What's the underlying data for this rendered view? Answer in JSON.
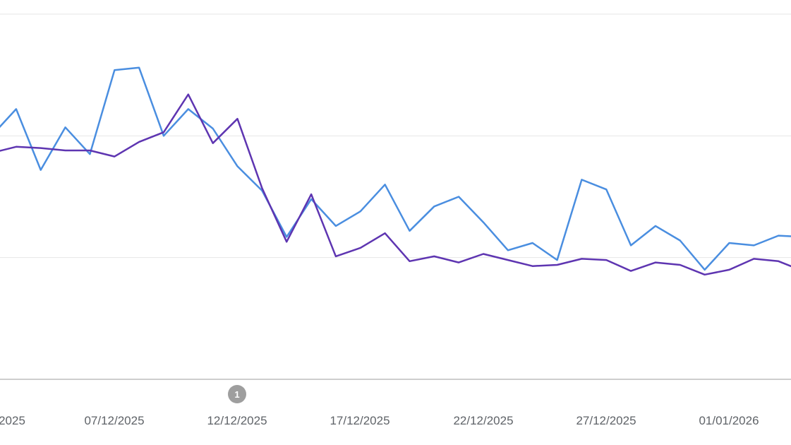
{
  "chart_data": {
    "type": "line",
    "title": "",
    "xlabel": "",
    "ylabel": "",
    "grid": true,
    "ylim": [
      0,
      3
    ],
    "x_start": "05/12/2025",
    "x_ticks": [
      "2025",
      "07/12/2025",
      "12/12/2025",
      "17/12/2025",
      "22/12/2025",
      "27/12/2025",
      "01/01/2026"
    ],
    "annotations": [
      {
        "label": "1",
        "date": "12/12/2025"
      }
    ],
    "series": [
      {
        "color": "#4a8ee0",
        "values": [
          2.0,
          2.22,
          1.72,
          2.07,
          1.85,
          2.54,
          2.56,
          2.0,
          2.22,
          2.06,
          1.75,
          1.55,
          1.17,
          1.48,
          1.26,
          1.38,
          1.6,
          1.22,
          1.42,
          1.5,
          1.29,
          1.06,
          1.12,
          0.98,
          1.64,
          1.56,
          1.1,
          1.26,
          1.14,
          0.9,
          1.12,
          1.1,
          1.18,
          1.17
        ]
      },
      {
        "color": "#5e35b1",
        "values": [
          1.86,
          1.91,
          1.9,
          1.88,
          1.88,
          1.83,
          1.95,
          2.03,
          2.34,
          1.94,
          2.14,
          1.57,
          1.13,
          1.52,
          1.01,
          1.08,
          1.2,
          0.97,
          1.01,
          0.96,
          1.03,
          0.98,
          0.93,
          0.94,
          0.99,
          0.98,
          0.89,
          0.96,
          0.94,
          0.86,
          0.9,
          0.99,
          0.97,
          0.89
        ]
      }
    ]
  }
}
